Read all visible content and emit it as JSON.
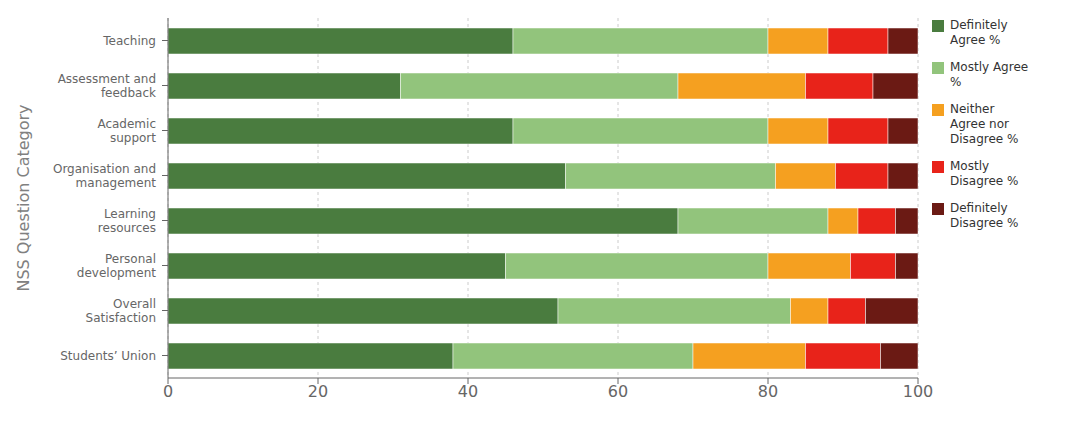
{
  "chart_data": {
    "type": "bar",
    "orientation": "horizontal",
    "stacked": true,
    "grid": true,
    "legend": "upper right",
    "ylabel": "NSS Question Category",
    "categories": [
      "Teaching",
      "Assessment and\nfeedback",
      "Academic\nsupport",
      "Organisation and\nmanagement",
      "Learning\nresources",
      "Personal\ndevelopment",
      "Overall\nSatisfaction",
      "Students’ Union"
    ],
    "series": [
      {
        "name": "Definitely\nAgree %",
        "color": "#4a7c3f",
        "values": [
          46,
          31,
          46,
          53,
          68,
          45,
          52,
          38
        ]
      },
      {
        "name": "Mostly Agree\n%",
        "color": "#92c47c",
        "values": [
          34,
          37,
          34,
          28,
          20,
          35,
          31,
          32
        ]
      },
      {
        "name": "Neither\nAgree nor\nDisagree %",
        "color": "#f5a020",
        "values": [
          8,
          17,
          8,
          8,
          4,
          11,
          5,
          15
        ]
      },
      {
        "name": "Mostly\nDisagree %",
        "color": "#e8231a",
        "values": [
          8,
          9,
          8,
          7,
          5,
          6,
          5,
          10
        ]
      },
      {
        "name": "Definitely\nDisagree %",
        "color": "#6b1a14",
        "values": [
          4,
          6,
          4,
          4,
          3,
          3,
          7,
          5
        ]
      }
    ],
    "xlim": [
      0,
      100
    ],
    "xticks": [
      0,
      20,
      40,
      60,
      80,
      100
    ]
  }
}
